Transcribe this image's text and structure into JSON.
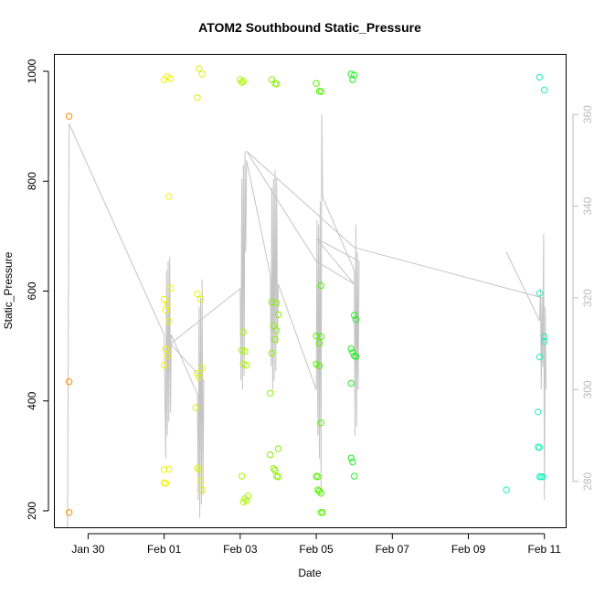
{
  "chart_data": {
    "type": "scatter",
    "title": "ATOM2 Southbound Static_Pressure",
    "xlabel": "Date",
    "ylabel": "Static_Pressure",
    "x_axis": {
      "kind": "date",
      "range": [
        "2023-01-29 03:00",
        "2023-02-11 14:00"
      ],
      "ticks": [
        {
          "label": "Jan 30",
          "date": "2023-01-30"
        },
        {
          "label": "Feb 01",
          "date": "2023-02-01"
        },
        {
          "label": "Feb 03",
          "date": "2023-02-03"
        },
        {
          "label": "Feb 05",
          "date": "2023-02-05"
        },
        {
          "label": "Feb 07",
          "date": "2023-02-07"
        },
        {
          "label": "Feb 09",
          "date": "2023-02-09"
        },
        {
          "label": "Feb 11",
          "date": "2023-02-11"
        }
      ]
    },
    "y_axis_left": {
      "range": [
        170,
        1030
      ],
      "ticks": [
        200,
        400,
        600,
        800,
        1000
      ]
    },
    "y_axis_right": {
      "range": [
        270,
        373
      ],
      "ticks": [
        280,
        300,
        320,
        340,
        360
      ],
      "color": "#bbbbbb"
    },
    "grid": false,
    "legend": "none",
    "series": [
      {
        "kind": "points",
        "axis": "left",
        "color_note": "hue shifts from orange to cyan with time",
        "points": [
          {
            "date": "2023-01-29 12:00",
            "y": 918,
            "color": "#ff8c00"
          },
          {
            "date": "2023-01-29 12:00",
            "y": 435,
            "color": "#ff8c00"
          },
          {
            "date": "2023-01-29 12:00",
            "y": 197,
            "color": "#ff8c00"
          },
          {
            "date": "2023-02-01 00:00",
            "y": 985,
            "color": "#f2f200"
          },
          {
            "date": "2023-02-01 02:00",
            "y": 990,
            "color": "#f2f200"
          },
          {
            "date": "2023-02-01 04:00",
            "y": 987,
            "color": "#f2f200"
          },
          {
            "date": "2023-02-01 03:00",
            "y": 772,
            "color": "#f2f200"
          },
          {
            "date": "2023-02-01 04:00",
            "y": 605,
            "color": "#f2f200"
          },
          {
            "date": "2023-02-01 00:00",
            "y": 585,
            "color": "#f2f200"
          },
          {
            "date": "2023-02-01 02:00",
            "y": 575,
            "color": "#f2f200"
          },
          {
            "date": "2023-02-01 01:00",
            "y": 565,
            "color": "#f2f200"
          },
          {
            "date": "2023-02-01 03:00",
            "y": 545,
            "color": "#f2f200"
          },
          {
            "date": "2023-02-01 01:00",
            "y": 495,
            "color": "#f2f200"
          },
          {
            "date": "2023-02-01 02:00",
            "y": 482,
            "color": "#f2f200"
          },
          {
            "date": "2023-02-01 00:00",
            "y": 465,
            "color": "#f2f200"
          },
          {
            "date": "2023-02-01 00:00",
            "y": 275,
            "color": "#f2f200"
          },
          {
            "date": "2023-02-01 03:00",
            "y": 276,
            "color": "#f2f200"
          },
          {
            "date": "2023-02-01 00:00",
            "y": 251,
            "color": "#f2f200"
          },
          {
            "date": "2023-02-01 01:00",
            "y": 250,
            "color": "#f2f200"
          },
          {
            "date": "2023-02-01 22:00",
            "y": 1005,
            "color": "#d8f500"
          },
          {
            "date": "2023-02-02 00:00",
            "y": 995,
            "color": "#d8f500"
          },
          {
            "date": "2023-02-01 21:00",
            "y": 952,
            "color": "#d8f500"
          },
          {
            "date": "2023-02-01 21:00",
            "y": 595,
            "color": "#d8f500"
          },
          {
            "date": "2023-02-01 23:00",
            "y": 585,
            "color": "#d8f500"
          },
          {
            "date": "2023-02-02 00:00",
            "y": 460,
            "color": "#d8f500"
          },
          {
            "date": "2023-02-01 21:00",
            "y": 450,
            "color": "#d8f500"
          },
          {
            "date": "2023-02-01 22:00",
            "y": 443,
            "color": "#d8f500"
          },
          {
            "date": "2023-02-01 20:00",
            "y": 388,
            "color": "#d8f500"
          },
          {
            "date": "2023-02-01 21:00",
            "y": 278,
            "color": "#d8f500"
          },
          {
            "date": "2023-02-01 22:00",
            "y": 275,
            "color": "#d8f500"
          },
          {
            "date": "2023-02-01 23:00",
            "y": 255,
            "color": "#d8f500"
          },
          {
            "date": "2023-02-02 00:00",
            "y": 238,
            "color": "#d8f500"
          },
          {
            "date": "2023-02-03 00:00",
            "y": 985,
            "color": "#a8f500"
          },
          {
            "date": "2023-02-03 02:00",
            "y": 982,
            "color": "#a8f500"
          },
          {
            "date": "2023-02-03 01:00",
            "y": 980,
            "color": "#a8f500"
          },
          {
            "date": "2023-02-03 02:00",
            "y": 525,
            "color": "#a8f500"
          },
          {
            "date": "2023-02-03 01:00",
            "y": 492,
            "color": "#a8f500"
          },
          {
            "date": "2023-02-03 03:00",
            "y": 490,
            "color": "#a8f500"
          },
          {
            "date": "2023-02-03 02:00",
            "y": 467,
            "color": "#a8f500"
          },
          {
            "date": "2023-02-03 04:00",
            "y": 465,
            "color": "#a8f500"
          },
          {
            "date": "2023-02-03 01:00",
            "y": 263,
            "color": "#a8f500"
          },
          {
            "date": "2023-02-03 05:00",
            "y": 227,
            "color": "#a8f500"
          },
          {
            "date": "2023-02-03 03:00",
            "y": 222,
            "color": "#a8f500"
          },
          {
            "date": "2023-02-03 04:00",
            "y": 218,
            "color": "#a8f500"
          },
          {
            "date": "2023-02-03 02:00",
            "y": 216,
            "color": "#a8f500"
          },
          {
            "date": "2023-02-03 20:00",
            "y": 985,
            "color": "#88f000"
          },
          {
            "date": "2023-02-03 22:00",
            "y": 978,
            "color": "#88f000"
          },
          {
            "date": "2023-02-03 23:00",
            "y": 977,
            "color": "#88f000"
          },
          {
            "date": "2023-02-03 20:00",
            "y": 580,
            "color": "#88f000"
          },
          {
            "date": "2023-02-03 23:00",
            "y": 578,
            "color": "#88f000"
          },
          {
            "date": "2023-02-04 00:00",
            "y": 557,
            "color": "#88f000"
          },
          {
            "date": "2023-02-03 21:00",
            "y": 537,
            "color": "#88f000"
          },
          {
            "date": "2023-02-03 23:00",
            "y": 528,
            "color": "#88f000"
          },
          {
            "date": "2023-02-03 22:00",
            "y": 512,
            "color": "#88f000"
          },
          {
            "date": "2023-02-03 20:00",
            "y": 487,
            "color": "#88f000"
          },
          {
            "date": "2023-02-03 19:00",
            "y": 414,
            "color": "#88f000"
          },
          {
            "date": "2023-02-04 00:00",
            "y": 313,
            "color": "#88f000"
          },
          {
            "date": "2023-02-03 19:00",
            "y": 302,
            "color": "#88f000"
          },
          {
            "date": "2023-02-03 21:00",
            "y": 277,
            "color": "#88f000"
          },
          {
            "date": "2023-02-03 22:00",
            "y": 274,
            "color": "#88f000"
          },
          {
            "date": "2023-02-03 23:00",
            "y": 263,
            "color": "#88f000"
          },
          {
            "date": "2023-02-04 00:00",
            "y": 262,
            "color": "#88f000"
          },
          {
            "date": "2023-02-05 00:00",
            "y": 978,
            "color": "#55f000"
          },
          {
            "date": "2023-02-05 02:00",
            "y": 964,
            "color": "#55f000"
          },
          {
            "date": "2023-02-05 03:00",
            "y": 963,
            "color": "#55f000"
          },
          {
            "date": "2023-02-05 03:00",
            "y": 610,
            "color": "#55f000"
          },
          {
            "date": "2023-02-05 00:00",
            "y": 518,
            "color": "#55f000"
          },
          {
            "date": "2023-02-05 03:00",
            "y": 517,
            "color": "#55f000"
          },
          {
            "date": "2023-02-05 02:00",
            "y": 505,
            "color": "#55f000"
          },
          {
            "date": "2023-02-05 00:00",
            "y": 467,
            "color": "#55f000"
          },
          {
            "date": "2023-02-05 02:00",
            "y": 464,
            "color": "#55f000"
          },
          {
            "date": "2023-02-05 03:00",
            "y": 360,
            "color": "#55f000"
          },
          {
            "date": "2023-02-05 00:00",
            "y": 263,
            "color": "#55f000"
          },
          {
            "date": "2023-02-05 01:00",
            "y": 262,
            "color": "#55f000"
          },
          {
            "date": "2023-02-05 01:00",
            "y": 238,
            "color": "#55f000"
          },
          {
            "date": "2023-02-05 02:00",
            "y": 236,
            "color": "#55f000"
          },
          {
            "date": "2023-02-05 03:00",
            "y": 232,
            "color": "#55f000"
          },
          {
            "date": "2023-02-05 03:00",
            "y": 197,
            "color": "#55f000"
          },
          {
            "date": "2023-02-05 04:00",
            "y": 197,
            "color": "#55f000"
          },
          {
            "date": "2023-02-05 22:00",
            "y": 995,
            "color": "#22ee22"
          },
          {
            "date": "2023-02-06 00:00",
            "y": 993,
            "color": "#22ee22"
          },
          {
            "date": "2023-02-05 23:00",
            "y": 985,
            "color": "#22ee22"
          },
          {
            "date": "2023-02-06 00:00",
            "y": 556,
            "color": "#22ee22"
          },
          {
            "date": "2023-02-06 01:00",
            "y": 548,
            "color": "#22ee22"
          },
          {
            "date": "2023-02-05 22:00",
            "y": 495,
            "color": "#22ee22"
          },
          {
            "date": "2023-02-05 23:00",
            "y": 488,
            "color": "#22ee22"
          },
          {
            "date": "2023-02-06 00:00",
            "y": 482,
            "color": "#22ee22"
          },
          {
            "date": "2023-02-06 01:00",
            "y": 481,
            "color": "#22ee22"
          },
          {
            "date": "2023-02-05 22:00",
            "y": 432,
            "color": "#22ee22"
          },
          {
            "date": "2023-02-05 22:00",
            "y": 296,
            "color": "#22ee22"
          },
          {
            "date": "2023-02-05 23:00",
            "y": 289,
            "color": "#22ee22"
          },
          {
            "date": "2023-02-06 00:00",
            "y": 263,
            "color": "#22ee22"
          },
          {
            "date": "2023-02-10 00:00",
            "y": 238,
            "color": "#22eebb"
          },
          {
            "date": "2023-02-10 21:00",
            "y": 989,
            "color": "#22eebb"
          },
          {
            "date": "2023-02-11 00:00",
            "y": 966,
            "color": "#22eebb"
          },
          {
            "date": "2023-02-10 21:00",
            "y": 596,
            "color": "#22eebb"
          },
          {
            "date": "2023-02-11 00:00",
            "y": 517,
            "color": "#22eebb"
          },
          {
            "date": "2023-02-11 00:00",
            "y": 508,
            "color": "#22eebb"
          },
          {
            "date": "2023-02-10 21:00",
            "y": 480,
            "color": "#22eebb"
          },
          {
            "date": "2023-02-10 20:00",
            "y": 380,
            "color": "#22eebb"
          },
          {
            "date": "2023-02-10 20:00",
            "y": 316,
            "color": "#22eebb"
          },
          {
            "date": "2023-02-10 21:00",
            "y": 315,
            "color": "#22eebb"
          },
          {
            "date": "2023-02-10 21:00",
            "y": 262,
            "color": "#22eebb"
          },
          {
            "date": "2023-02-10 22:00",
            "y": 262,
            "color": "#22eebb"
          },
          {
            "date": "2023-02-10 23:00",
            "y": 262,
            "color": "#22eebb"
          }
        ]
      },
      {
        "kind": "line",
        "axis": "right",
        "color": "#c4c4c4",
        "segments": [
          [
            [
              "2023-01-29 11:00",
              270
            ],
            [
              "2023-01-29 12:00",
              358
            ],
            [
              "2023-02-01 00:00",
              312
            ],
            [
              "2023-02-01 01:00",
              285
            ],
            [
              "2023-02-01 01:30",
              326
            ],
            [
              "2023-02-01 02:00",
              290
            ],
            [
              "2023-02-01 02:30",
              328
            ],
            [
              "2023-02-01 03:00",
              293
            ],
            [
              "2023-02-01 03:30",
              329
            ],
            [
              "2023-02-01 04:00",
              295
            ],
            [
              "2023-02-01 04:30",
              312
            ],
            [
              "2023-02-01 21:00",
              299
            ],
            [
              "2023-02-01 21:30",
              276
            ],
            [
              "2023-02-01 22:00",
              318
            ],
            [
              "2023-02-01 22:30",
              272
            ],
            [
              "2023-02-01 23:00",
              320
            ],
            [
              "2023-02-01 23:30",
              275
            ],
            [
              "2023-02-02 00:00",
              324
            ],
            [
              "2023-02-02 00:30",
              277
            ],
            [
              "2023-02-02 01:00",
              302
            ],
            [
              "2023-02-01 04:00",
              310
            ],
            [
              "2023-02-03 00:00",
              322
            ],
            [
              "2023-02-03 00:30",
              302
            ],
            [
              "2023-02-03 01:00",
              346
            ],
            [
              "2023-02-03 01:30",
              300
            ],
            [
              "2023-02-03 02:00",
              349
            ],
            [
              "2023-02-03 02:30",
              303
            ],
            [
              "2023-02-03 03:00",
              352
            ],
            [
              "2023-02-03 03:30",
              330
            ],
            [
              "2023-02-03 04:00",
              350
            ],
            [
              "2023-02-03 19:00",
              325
            ],
            [
              "2023-02-03 19:30",
              305
            ],
            [
              "2023-02-03 20:00",
              344
            ],
            [
              "2023-02-03 20:30",
              300
            ],
            [
              "2023-02-03 21:00",
              346
            ],
            [
              "2023-02-03 21:30",
              302
            ],
            [
              "2023-02-03 22:00",
              348
            ],
            [
              "2023-02-03 22:30",
              304
            ],
            [
              "2023-02-03 23:00",
              346
            ],
            [
              "2023-02-03 23:30",
              310
            ],
            [
              "2023-02-04 00:00",
              323
            ],
            [
              "2023-02-05 00:00",
              300
            ],
            [
              "2023-02-05 00:30",
              337
            ],
            [
              "2023-02-05 01:00",
              290
            ],
            [
              "2023-02-05 01:30",
              336
            ],
            [
              "2023-02-05 02:00",
              285
            ],
            [
              "2023-02-05 02:30",
              341
            ],
            [
              "2023-02-05 03:00",
              278
            ],
            [
              "2023-02-05 03:30",
              360
            ],
            [
              "2023-02-05 04:00",
              342
            ],
            [
              "2023-02-06 00:00",
              326
            ],
            [
              "2023-02-06 00:30",
              290
            ],
            [
              "2023-02-06 01:00",
              336
            ],
            [
              "2023-02-06 01:30",
              292
            ],
            [
              "2023-02-06 02:00",
              330
            ],
            [
              "2023-02-06 02:30",
              300
            ],
            [
              "2023-02-06 03:00",
              328
            ],
            [
              "2023-02-05 00:00",
              333
            ],
            [
              "2023-02-06 00:00",
              323
            ],
            [
              "2023-02-05 00:00",
              328
            ],
            [
              "2023-02-03 04:00",
              352
            ],
            [
              "2023-02-06 00:00",
              331
            ],
            [
              "2023-02-10 23:00",
              320
            ]
          ],
          [
            [
              "2023-02-10 00:00",
              330
            ],
            [
              "2023-02-10 21:00",
              315
            ],
            [
              "2023-02-10 21:30",
              322
            ],
            [
              "2023-02-10 22:00",
              300
            ],
            [
              "2023-02-10 22:30",
              320
            ],
            [
              "2023-02-10 23:00",
              305
            ],
            [
              "2023-02-10 23:30",
              334
            ],
            [
              "2023-02-11 00:00",
              276
            ],
            [
              "2023-02-11 00:30",
              318
            ],
            [
              "2023-02-11 01:00",
              300
            ]
          ]
        ]
      }
    ]
  }
}
